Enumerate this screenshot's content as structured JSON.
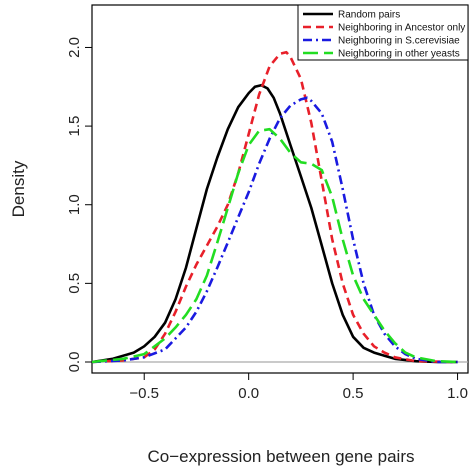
{
  "chart_data": {
    "type": "line",
    "title": "",
    "xlabel": "Co−expression between gene pairs",
    "ylabel": "Density",
    "xlim": [
      -0.75,
      1.05
    ],
    "ylim": [
      -0.07,
      2.27
    ],
    "x_ticks": [
      -0.5,
      0.0,
      0.5,
      1.0
    ],
    "x_tick_labels": [
      "−0.5",
      "0.0",
      "0.5",
      "1.0"
    ],
    "y_ticks": [
      0.0,
      0.5,
      1.0,
      1.5,
      2.0
    ],
    "y_tick_labels": [
      "0.0",
      "0.5",
      "1.0",
      "1.5",
      "2.0"
    ],
    "baseline": 0,
    "legend_position": "top-right",
    "series": [
      {
        "name": "Random pairs",
        "color": "#000000",
        "dash": "solid",
        "x": [
          -0.75,
          -0.65,
          -0.55,
          -0.5,
          -0.45,
          -0.4,
          -0.35,
          -0.3,
          -0.25,
          -0.2,
          -0.15,
          -0.1,
          -0.05,
          0.0,
          0.03,
          0.06,
          0.09,
          0.12,
          0.15,
          0.2,
          0.25,
          0.3,
          0.35,
          0.4,
          0.45,
          0.5,
          0.55,
          0.6,
          0.65,
          0.7,
          0.8,
          0.9,
          1.0
        ],
        "y": [
          0.0,
          0.02,
          0.06,
          0.1,
          0.16,
          0.25,
          0.4,
          0.6,
          0.85,
          1.1,
          1.3,
          1.48,
          1.62,
          1.71,
          1.75,
          1.76,
          1.74,
          1.68,
          1.58,
          1.38,
          1.18,
          0.98,
          0.74,
          0.5,
          0.3,
          0.16,
          0.09,
          0.06,
          0.04,
          0.02,
          0.005,
          0.0,
          0.0
        ]
      },
      {
        "name": "Neighboring in Ancestor only",
        "color": "#e8202a",
        "dash": "dashed",
        "x": [
          -0.75,
          -0.6,
          -0.5,
          -0.45,
          -0.4,
          -0.35,
          -0.3,
          -0.25,
          -0.2,
          -0.15,
          -0.1,
          -0.05,
          0.0,
          0.05,
          0.1,
          0.15,
          0.18,
          0.2,
          0.25,
          0.3,
          0.35,
          0.4,
          0.45,
          0.5,
          0.55,
          0.6,
          0.65,
          0.7,
          0.8,
          1.0
        ],
        "y": [
          0.0,
          0.01,
          0.03,
          0.08,
          0.18,
          0.32,
          0.48,
          0.62,
          0.74,
          0.86,
          1.0,
          1.2,
          1.45,
          1.7,
          1.88,
          1.96,
          1.97,
          1.94,
          1.8,
          1.52,
          1.15,
          0.78,
          0.5,
          0.3,
          0.18,
          0.1,
          0.06,
          0.03,
          0.005,
          0.0
        ]
      },
      {
        "name": "Neighboring in S.cerevisiae",
        "color": "#1a1ae0",
        "dash": "dashdot",
        "x": [
          -0.75,
          -0.6,
          -0.5,
          -0.4,
          -0.35,
          -0.3,
          -0.25,
          -0.2,
          -0.15,
          -0.1,
          -0.05,
          0.0,
          0.05,
          0.1,
          0.15,
          0.2,
          0.25,
          0.28,
          0.3,
          0.35,
          0.4,
          0.45,
          0.5,
          0.55,
          0.6,
          0.65,
          0.7,
          0.75,
          0.8,
          0.9,
          1.0
        ],
        "y": [
          0.0,
          0.01,
          0.03,
          0.08,
          0.15,
          0.22,
          0.32,
          0.45,
          0.6,
          0.76,
          0.92,
          1.08,
          1.26,
          1.42,
          1.55,
          1.63,
          1.67,
          1.68,
          1.66,
          1.58,
          1.4,
          1.1,
          0.78,
          0.5,
          0.3,
          0.18,
          0.1,
          0.05,
          0.02,
          0.0,
          0.0
        ]
      },
      {
        "name": "Neighboring in other yeasts",
        "color": "#22dd22",
        "dash": "longdash",
        "x": [
          -0.75,
          -0.6,
          -0.5,
          -0.4,
          -0.35,
          -0.3,
          -0.25,
          -0.2,
          -0.15,
          -0.1,
          -0.05,
          0.0,
          0.05,
          0.1,
          0.15,
          0.2,
          0.25,
          0.3,
          0.35,
          0.4,
          0.45,
          0.5,
          0.55,
          0.6,
          0.65,
          0.7,
          0.75,
          0.8,
          0.9,
          1.0
        ],
        "y": [
          0.0,
          0.02,
          0.05,
          0.15,
          0.22,
          0.3,
          0.4,
          0.55,
          0.76,
          0.98,
          1.2,
          1.38,
          1.47,
          1.48,
          1.42,
          1.33,
          1.27,
          1.26,
          1.22,
          1.05,
          0.78,
          0.55,
          0.4,
          0.3,
          0.2,
          0.12,
          0.06,
          0.03,
          0.005,
          0.0
        ]
      }
    ]
  }
}
